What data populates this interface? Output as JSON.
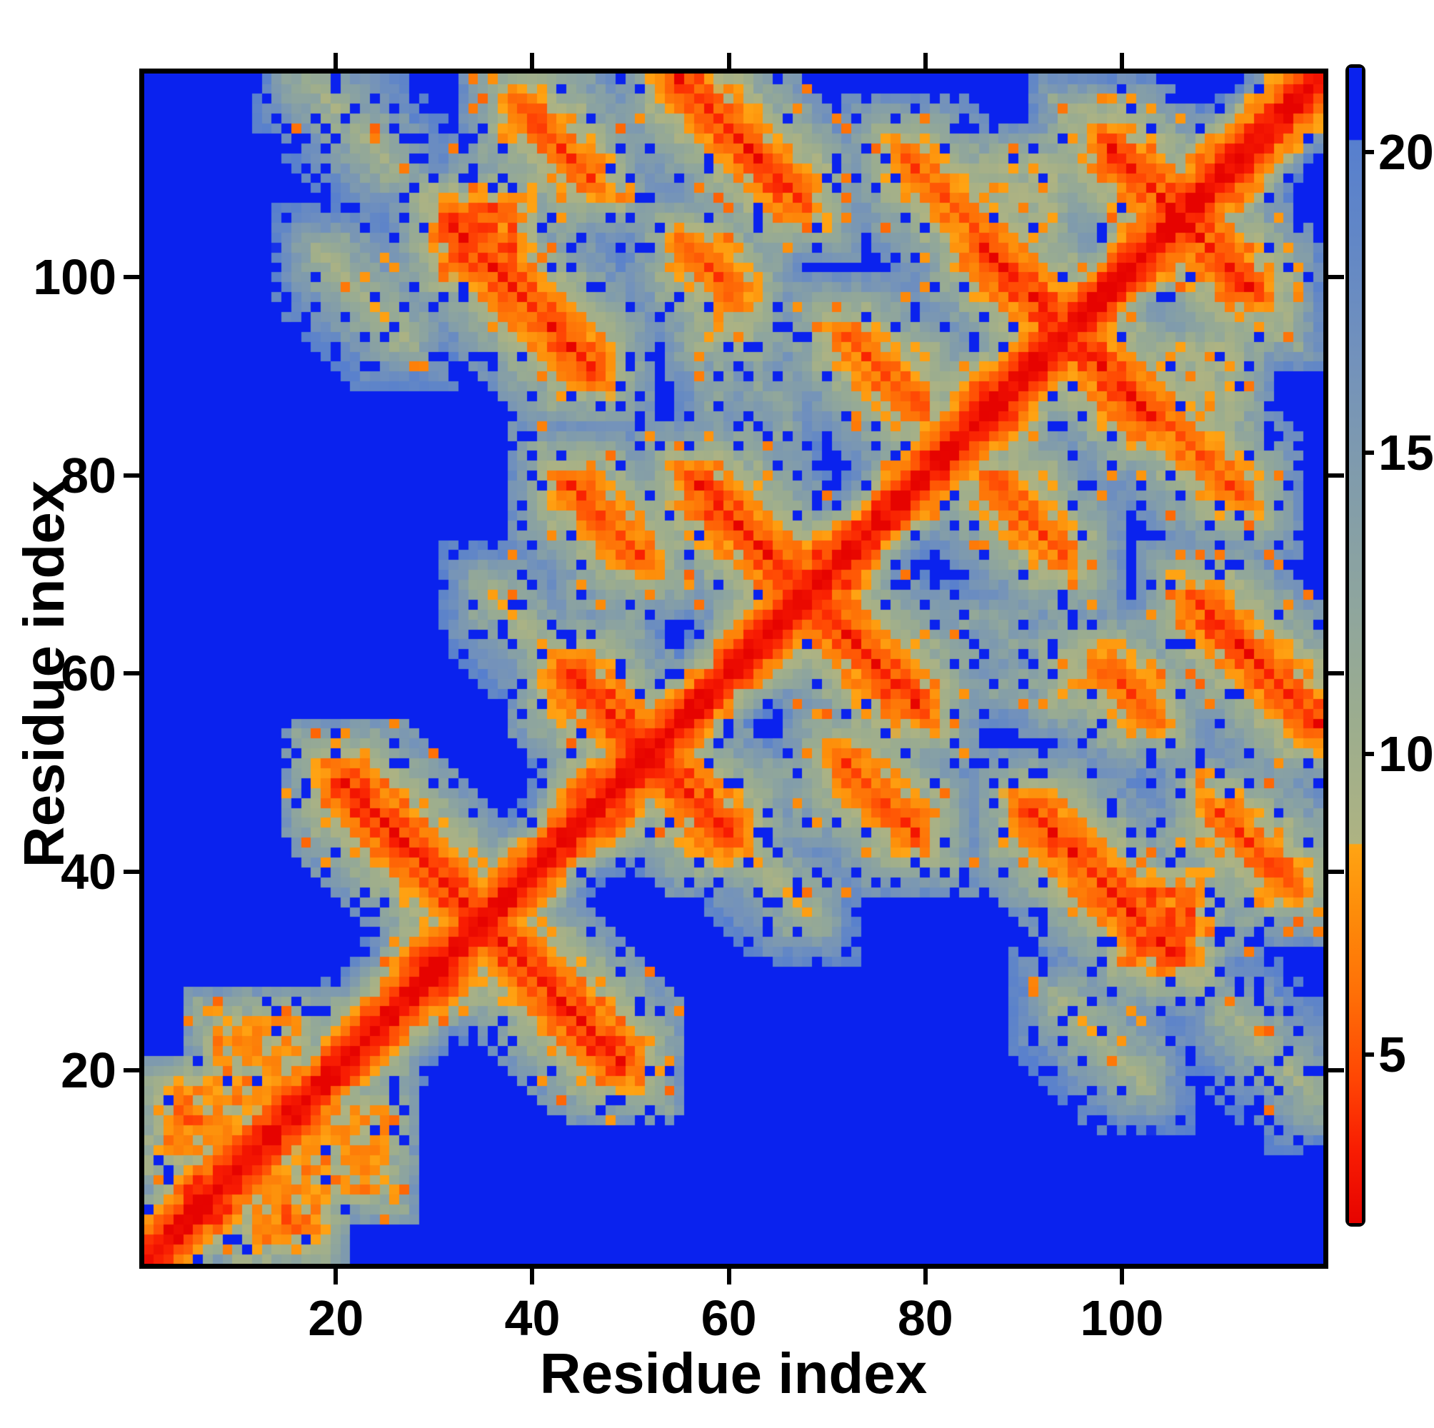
{
  "chart_data": {
    "type": "heatmap",
    "title": "",
    "xlabel": "Residue index",
    "ylabel": "Residue index",
    "x_ticks": [
      20,
      40,
      60,
      80,
      100
    ],
    "y_ticks": [
      20,
      40,
      60,
      80,
      100
    ],
    "axis_range": [
      0.5,
      120.5
    ],
    "n_residues": 120,
    "grid": false,
    "legend": "colorbar-right",
    "colorbar": {
      "ticks": [
        5,
        10,
        15,
        20
      ],
      "vmin": 2.2,
      "vmax": 21.4
    },
    "colormap_stops": [
      [
        2.2,
        "#e60300"
      ],
      [
        3.4,
        "#f81c02"
      ],
      [
        4.6,
        "#ff4604"
      ],
      [
        6.0,
        "#fe6f07"
      ],
      [
        7.4,
        "#fd8d0a"
      ],
      [
        8.49,
        "#ffa413"
      ],
      [
        8.51,
        "#aeb382"
      ],
      [
        10.5,
        "#9cad8e"
      ],
      [
        12.5,
        "#8ea59e"
      ],
      [
        14.5,
        "#819cab"
      ],
      [
        16.5,
        "#7392bb"
      ],
      [
        18.5,
        "#6287c6"
      ],
      [
        20.19,
        "#577fce"
      ],
      [
        20.21,
        "#0a22ee"
      ],
      [
        21.4,
        "#0a22ee"
      ]
    ],
    "palette": {
      "far_background": "#0a22ee",
      "contact_red": "#ee0404",
      "contact_orange": "#fe9005",
      "mid_sage": "#9dab8c",
      "mid_slate": "#5b84c0"
    },
    "matrix_model": {
      "description": "Symmetric 120x120 residue-residue distance map; diagonal red band (short distances), antiparallel beta contacts as anti-diagonal orange streaks with sage halos, far pairs clipped to blue",
      "n": 120,
      "vmin": 2.2,
      "vmax": 21.4,
      "backbone_profile": [
        2.2,
        2.9,
        4.3,
        6.0,
        7.9,
        10.0,
        12.2,
        14.5,
        16.9,
        19.3,
        21.0,
        21.4
      ],
      "width_mod_amp": 0.24,
      "helices": [
        {
          "a": 1,
          "b": 13
        },
        {
          "a": 112,
          "b": 119
        }
      ],
      "anti_lines": [
        {
          "s": 70,
          "a": 21,
          "b": 34,
          "core": 2.8
        },
        {
          "s": 104,
          "a": 36,
          "b": 43,
          "core": 8.8
        },
        {
          "s": 104,
          "a": 44,
          "b": 51,
          "core": 3.0
        },
        {
          "s": 123,
          "a": 44,
          "b": 51,
          "core": 4.0
        },
        {
          "s": 136,
          "a": 57,
          "b": 67,
          "core": 3.0
        },
        {
          "s": 137,
          "a": 32,
          "b": 46,
          "core": 3.4
        },
        {
          "s": 137,
          "a": 17,
          "b": 26,
          "core": 9.5
        },
        {
          "s": 121,
          "a": 19,
          "b": 27,
          "core": 9.0
        },
        {
          "s": 156,
          "a": 39,
          "b": 46,
          "core": 4.2
        },
        {
          "s": 159,
          "a": 56,
          "b": 61,
          "core": 4.6
        },
        {
          "s": 166,
          "a": 72,
          "b": 79,
          "core": 4.4
        },
        {
          "s": 175,
          "a": 55,
          "b": 67,
          "core": 3.4
        },
        {
          "s": 189,
          "a": 86,
          "b": 94,
          "core": 3.0
        },
        {
          "s": 190,
          "a": 78,
          "b": 86,
          "core": 4.4
        },
        {
          "s": 212,
          "a": 99,
          "b": 105,
          "core": 3.2
        }
      ],
      "blobs": [
        {
          "i": [
            32,
            38
          ],
          "j": [
            101,
            107
          ],
          "level": 5.5
        },
        {
          "i": [
            8,
            16
          ],
          "j": [
            17,
            25
          ],
          "level": 8.0
        },
        {
          "i": [
            3,
            9
          ],
          "j": [
            12,
            18
          ],
          "level": 7.0
        },
        {
          "i": [
            86,
            93
          ],
          "j": [
            105,
            112
          ],
          "level": 9.5
        },
        {
          "i": [
            74,
            81
          ],
          "j": [
            86,
            93
          ],
          "level": 9.8
        },
        {
          "i": [
            94,
            101
          ],
          "j": [
            110,
            117
          ],
          "level": 10.5
        },
        {
          "i": [
            57,
            63
          ],
          "j": [
            93,
            99
          ],
          "level": 10.0
        },
        {
          "i": [
            44,
            51
          ],
          "j": [
            62,
            79
          ],
          "level": 13.5
        },
        {
          "i": [
            57,
            67
          ],
          "j": [
            80,
            95
          ],
          "level": 14.0
        },
        {
          "i": [
            33,
            46
          ],
          "j": [
            104,
            112
          ],
          "level": 13.5
        }
      ],
      "hole_probability": 0.1,
      "orange_dot_probability": 0.05,
      "noise_seed": 7
    }
  }
}
